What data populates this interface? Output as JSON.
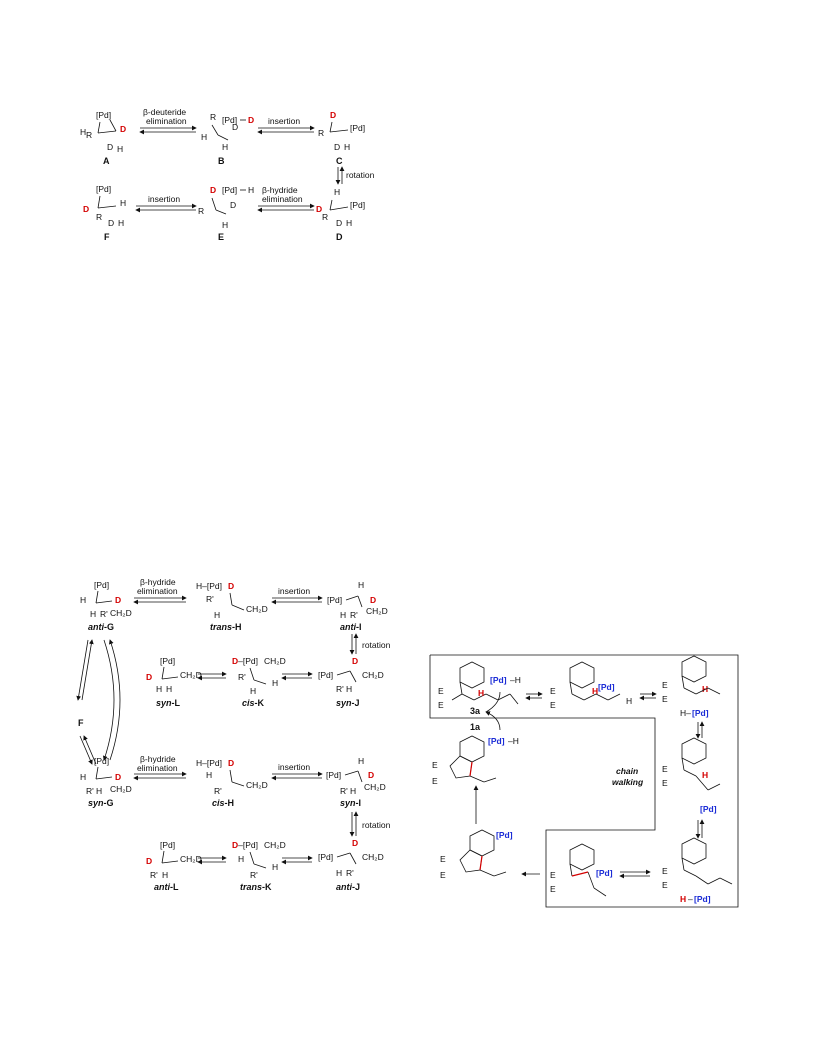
{
  "scheme1": {
    "step_AB": "β-deuteride\nelimination",
    "step_BC": "insertion",
    "step_CD": "rotation",
    "step_DE": "β-hydride\nelimination",
    "step_EF": "insertion",
    "compounds": {
      "A": "A",
      "B": "B",
      "C": "C",
      "D": "D",
      "E": "E",
      "F": "F"
    },
    "atoms": {
      "pd": "[Pd]",
      "pd_d": "[Pd]",
      "d": "D",
      "h": "H",
      "r": "R"
    }
  },
  "scheme2": {
    "step_GH": "β-hydride\nelimination",
    "step_HI": "insertion",
    "step_IJ": "rotation",
    "step_F": "F",
    "names": {
      "antiG": [
        "anti",
        "G"
      ],
      "transH": [
        "trans",
        "H"
      ],
      "antiI": [
        "anti",
        "I"
      ],
      "synL": [
        "syn",
        "L"
      ],
      "cisK": [
        "cis",
        "K"
      ],
      "synJ": [
        "syn",
        "J"
      ],
      "synG": [
        "syn",
        "G"
      ],
      "cisH": [
        "cis",
        "H"
      ],
      "synI": [
        "syn",
        "I"
      ],
      "antiL": [
        "anti",
        "L"
      ],
      "transK": [
        "trans",
        "K"
      ],
      "antiJ": [
        "anti",
        "J"
      ]
    },
    "atoms": {
      "pd": "[Pd]",
      "ch2d": "CH2D",
      "rp": "R'",
      "h_pd": "H–[Pd]",
      "d_pd": "D–[Pd]"
    }
  },
  "scheme3": {
    "box_label": "chain\nwalking",
    "reagent_top": "3a",
    "reagent_bottom": "1a",
    "atoms": {
      "pd": "[Pd]",
      "pdh": "[Pd]–H",
      "hpd": "H–[Pd]",
      "e": "E",
      "h": "H"
    }
  },
  "colors": {
    "deuterium": "#d40000",
    "palladium": "#1a2bd6",
    "bond_highlight": "#d40000"
  }
}
